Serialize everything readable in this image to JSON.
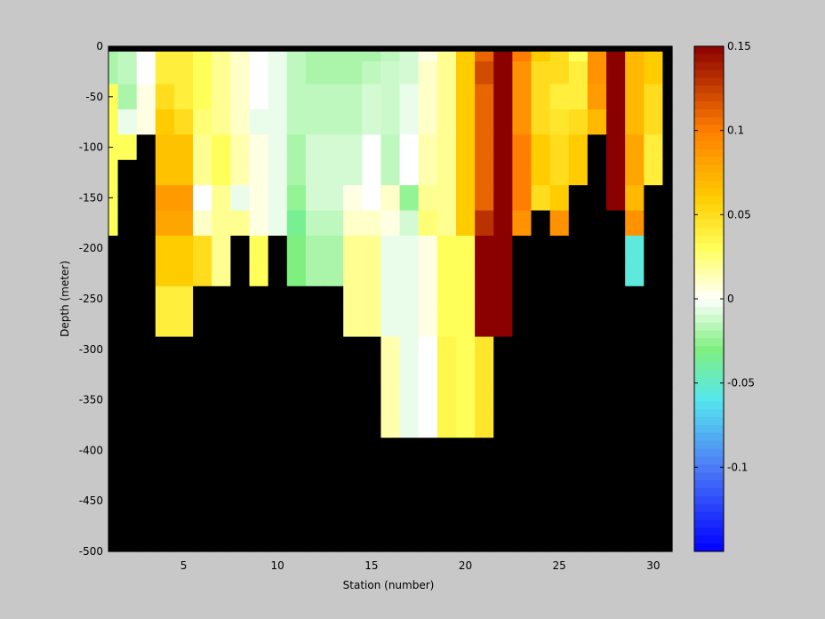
{
  "chart_data": {
    "type": "heatmap",
    "title": "",
    "xlabel": "Station (number)",
    "ylabel": "Depth (meter)",
    "xlim": [
      1,
      31
    ],
    "ylim": [
      -500,
      0
    ],
    "x_ticks": [
      "5",
      "10",
      "15",
      "20",
      "25",
      "30"
    ],
    "x_tick_values": [
      5,
      10,
      15,
      20,
      25,
      30
    ],
    "y_ticks": [
      "0",
      "-50",
      "-100",
      "-150",
      "-200",
      "-250",
      "-300",
      "-350",
      "-400",
      "-450",
      "-500"
    ],
    "y_tick_values": [
      0,
      -50,
      -100,
      -150,
      -200,
      -250,
      -300,
      -350,
      -400,
      -450,
      -500
    ],
    "colorbar": {
      "range": [
        -0.15,
        0.15
      ],
      "tick_labels": [
        "0.15",
        "0.1",
        "0.05",
        "0",
        "-0.05",
        "-0.1"
      ],
      "tick_values": [
        0.15,
        0.1,
        0.05,
        0,
        -0.05,
        -0.1
      ],
      "colormap": [
        "#0000ff",
        "#4d7cf6",
        "#56e7ee",
        "#7ff07f",
        "#ffffff",
        "#ffff5a",
        "#ffcc00",
        "#ff7e00",
        "#8b0000"
      ],
      "colormap_stops": [
        -0.15,
        -0.1,
        -0.06,
        -0.03,
        0,
        0.03,
        0.06,
        0.1,
        0.15
      ]
    },
    "no_data_color": "#000000",
    "stations": [
      1,
      2,
      3,
      4,
      5,
      6,
      7,
      8,
      9,
      10,
      11,
      12,
      13,
      14,
      15,
      16,
      17,
      18,
      19,
      20,
      21,
      22,
      23,
      24,
      25,
      26,
      27,
      28,
      29,
      30,
      31
    ],
    "depths": [
      -5,
      -25,
      -50,
      -75,
      -100,
      -125,
      -150,
      -175,
      -200,
      -225,
      -250,
      -275,
      -300,
      -325,
      -350,
      -375,
      -400
    ],
    "values": [
      [
        -0.02,
        -0.015,
        0.0,
        0.04,
        0.04,
        0.03,
        0.02,
        0.01,
        0.0,
        -0.005,
        -0.015,
        -0.02,
        -0.02,
        -0.02,
        -0.02,
        -0.015,
        -0.01,
        0.005,
        0.02,
        0.06,
        0.11,
        0.15,
        0.1,
        0.06,
        0.05,
        0.03,
        0.09,
        0.15,
        0.07,
        0.06,
        null
      ],
      [
        -0.02,
        -0.015,
        0.0,
        0.04,
        0.04,
        0.03,
        0.02,
        0.01,
        0.0,
        -0.005,
        -0.015,
        -0.02,
        -0.02,
        -0.02,
        -0.015,
        -0.012,
        -0.01,
        0.01,
        0.02,
        0.06,
        0.12,
        0.15,
        0.09,
        0.05,
        0.05,
        0.04,
        0.09,
        0.15,
        0.07,
        0.06,
        null
      ],
      [
        0.03,
        -0.02,
        0.005,
        0.05,
        0.04,
        0.03,
        0.02,
        0.01,
        0.0,
        -0.005,
        -0.015,
        -0.015,
        -0.015,
        -0.015,
        -0.01,
        -0.012,
        -0.005,
        0.01,
        0.02,
        0.06,
        0.11,
        0.15,
        0.09,
        0.05,
        0.04,
        0.04,
        0.085,
        0.15,
        0.07,
        0.05,
        null
      ],
      [
        0.03,
        -0.005,
        0.005,
        0.06,
        0.05,
        0.025,
        0.02,
        0.01,
        -0.005,
        -0.005,
        -0.015,
        -0.015,
        -0.015,
        -0.015,
        -0.01,
        -0.012,
        -0.005,
        0.01,
        0.02,
        0.06,
        0.11,
        0.15,
        0.09,
        0.05,
        0.045,
        0.05,
        0.07,
        0.15,
        0.07,
        0.05,
        null
      ],
      [
        0.03,
        0.03,
        null,
        0.065,
        0.065,
        0.02,
        0.03,
        0.015,
        0.005,
        -0.005,
        -0.02,
        -0.01,
        -0.01,
        -0.01,
        0.0,
        -0.015,
        0.0,
        0.015,
        0.02,
        0.06,
        0.11,
        0.15,
        0.1,
        0.06,
        0.05,
        0.06,
        null,
        0.15,
        0.08,
        0.04,
        null
      ],
      [
        0.03,
        null,
        null,
        0.065,
        0.065,
        0.02,
        0.03,
        0.015,
        0.005,
        -0.005,
        -0.02,
        -0.01,
        -0.01,
        -0.01,
        0.0,
        -0.015,
        0.0,
        0.015,
        0.02,
        0.06,
        0.11,
        0.15,
        0.1,
        0.06,
        0.05,
        0.06,
        null,
        0.15,
        0.08,
        0.04,
        null
      ],
      [
        0.03,
        null,
        null,
        0.085,
        0.085,
        0.0,
        0.02,
        -0.005,
        0.005,
        -0.005,
        -0.025,
        -0.01,
        -0.01,
        0.005,
        0.0,
        0.01,
        -0.025,
        0.02,
        0.02,
        0.06,
        0.11,
        0.15,
        0.1,
        0.05,
        0.06,
        null,
        null,
        0.15,
        0.07,
        null,
        null
      ],
      [
        0.03,
        null,
        null,
        0.08,
        0.08,
        0.01,
        0.02,
        0.02,
        0.005,
        -0.005,
        -0.035,
        -0.015,
        -0.015,
        0.01,
        0.01,
        0.005,
        -0.01,
        0.025,
        0.02,
        0.06,
        0.13,
        0.15,
        0.09,
        null,
        0.09,
        null,
        null,
        null,
        0.09,
        null,
        null
      ],
      [
        null,
        null,
        null,
        0.06,
        0.06,
        0.05,
        0.02,
        null,
        0.03,
        null,
        -0.03,
        -0.02,
        -0.02,
        0.02,
        0.02,
        -0.005,
        -0.005,
        0.005,
        0.03,
        0.03,
        0.15,
        0.15,
        null,
        null,
        null,
        null,
        null,
        null,
        -0.055,
        null,
        null
      ],
      [
        null,
        null,
        null,
        0.06,
        0.06,
        0.05,
        0.02,
        null,
        0.03,
        null,
        -0.03,
        -0.02,
        -0.02,
        0.02,
        0.02,
        -0.005,
        -0.005,
        0.005,
        0.03,
        0.03,
        0.15,
        0.15,
        null,
        null,
        null,
        null,
        null,
        null,
        -0.055,
        null,
        null
      ],
      [
        null,
        null,
        null,
        0.04,
        0.04,
        null,
        null,
        null,
        null,
        null,
        null,
        null,
        null,
        0.02,
        0.02,
        -0.005,
        -0.005,
        0.005,
        0.03,
        0.03,
        0.15,
        0.15,
        null,
        null,
        null,
        null,
        null,
        null,
        null,
        null,
        null
      ],
      [
        null,
        null,
        null,
        0.04,
        0.04,
        null,
        null,
        null,
        null,
        null,
        null,
        null,
        null,
        0.02,
        0.02,
        -0.005,
        -0.005,
        0.005,
        0.03,
        0.03,
        0.15,
        0.15,
        null,
        null,
        null,
        null,
        null,
        null,
        null,
        null,
        null
      ],
      [
        null,
        null,
        null,
        null,
        null,
        null,
        null,
        null,
        null,
        null,
        null,
        null,
        null,
        null,
        null,
        0.015,
        -0.005,
        0.0,
        0.035,
        0.03,
        0.045,
        null,
        null,
        null,
        null,
        null,
        null,
        null,
        null,
        null,
        null
      ],
      [
        null,
        null,
        null,
        null,
        null,
        null,
        null,
        null,
        null,
        null,
        null,
        null,
        null,
        null,
        null,
        0.015,
        -0.005,
        0.0,
        0.035,
        0.03,
        0.045,
        null,
        null,
        null,
        null,
        null,
        null,
        null,
        null,
        null,
        null
      ],
      [
        null,
        null,
        null,
        null,
        null,
        null,
        null,
        null,
        null,
        null,
        null,
        null,
        null,
        null,
        null,
        0.015,
        -0.005,
        0.0,
        0.035,
        0.03,
        0.045,
        null,
        null,
        null,
        null,
        null,
        null,
        null,
        null,
        null,
        null
      ],
      [
        null,
        null,
        null,
        null,
        null,
        null,
        null,
        null,
        null,
        null,
        null,
        null,
        null,
        null,
        null,
        0.015,
        -0.005,
        0.0,
        0.035,
        0.03,
        0.045,
        null,
        null,
        null,
        null,
        null,
        null,
        null,
        null,
        null,
        null
      ],
      [
        null,
        null,
        null,
        null,
        null,
        null,
        null,
        null,
        null,
        null,
        null,
        null,
        null,
        null,
        null,
        null,
        null,
        null,
        null,
        null,
        null,
        null,
        null,
        null,
        null,
        null,
        null,
        null,
        null,
        null,
        null
      ]
    ]
  }
}
